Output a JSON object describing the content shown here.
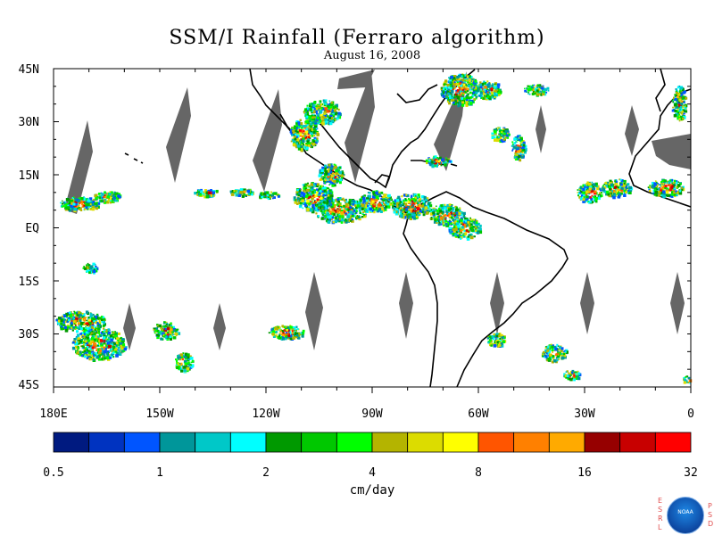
{
  "title": "SSM/I Rainfall (Ferraro algorithm)",
  "date": "August 16, 2008",
  "lat_labels": [
    "45N",
    "30N",
    "15N",
    "EQ",
    "15S",
    "30S",
    "45S"
  ],
  "lon_labels": [
    "180E",
    "150W",
    "120W",
    "90W",
    "60W",
    "30W",
    "0"
  ],
  "colorbar": {
    "units": "cm/day",
    "tick_labels": [
      "0.5",
      "1",
      "2",
      "4",
      "8",
      "16",
      "32"
    ],
    "colors": [
      "#001a80",
      "#0033c0",
      "#0055ff",
      "#00969a",
      "#00c8c8",
      "#00ffff",
      "#009900",
      "#00c800",
      "#00ff00",
      "#b4b400",
      "#dcdc00",
      "#ffff00",
      "#ff5500",
      "#ff8000",
      "#ffaa00",
      "#960000",
      "#c80000",
      "#ff0000"
    ]
  },
  "logo": {
    "left_letters": [
      "E",
      "S",
      "R",
      "L"
    ],
    "right_letters": [
      "P",
      "S",
      "D"
    ],
    "seal_text": "NOAA"
  }
}
